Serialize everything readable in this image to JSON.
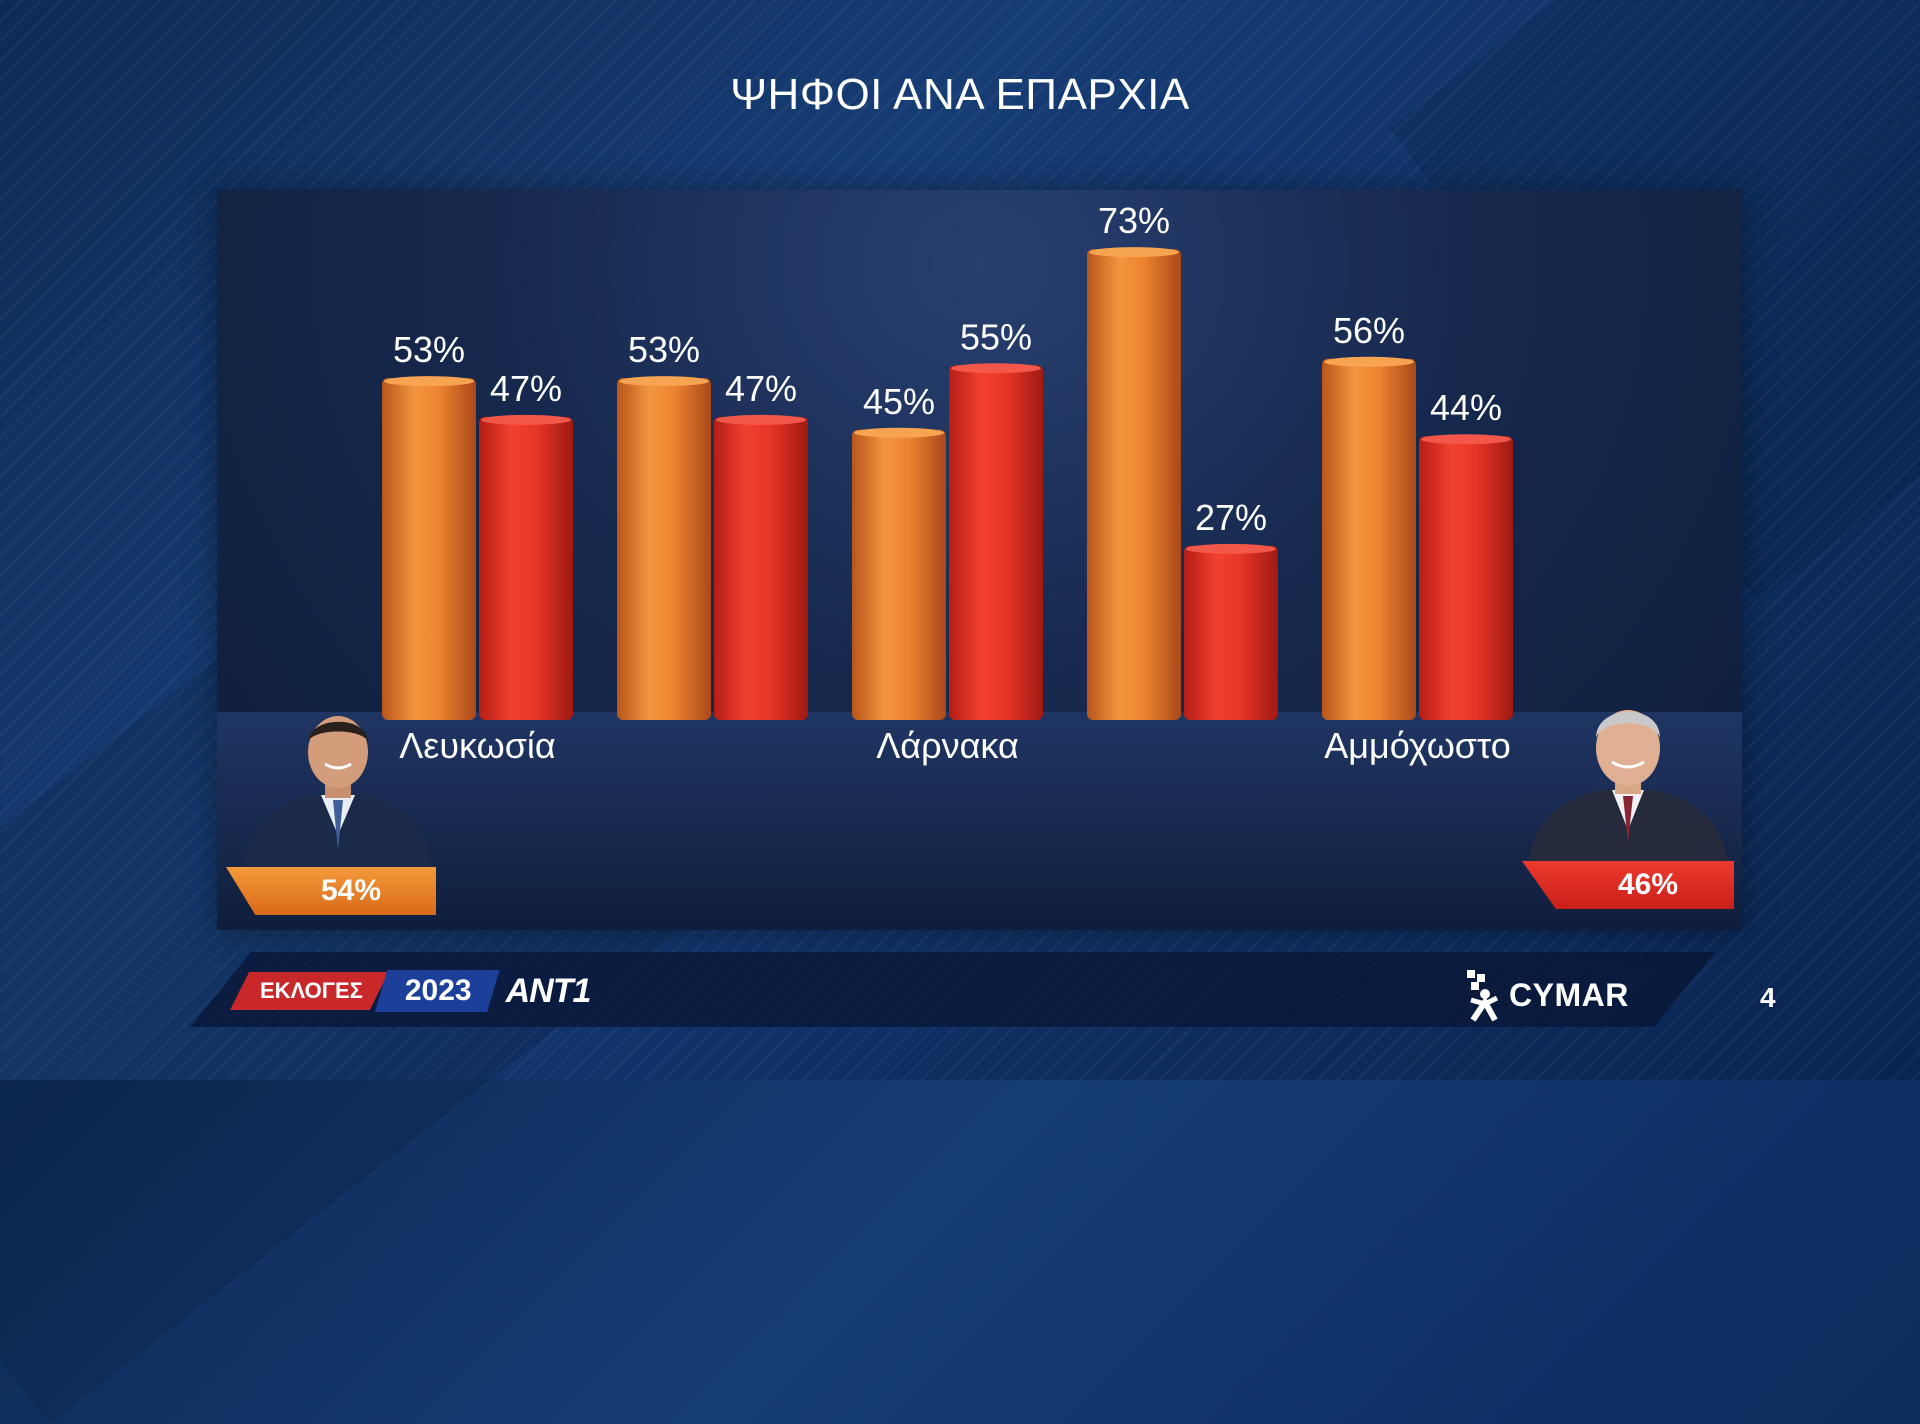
{
  "title": "ΨΗΦΟΙ ΑΝΑ ΕΠΑΡΧΙΑ",
  "chart_data": {
    "type": "bar",
    "categories": [
      "Λευκωσία",
      "",
      "Λάρνακα",
      "",
      "Αμμόχωστο"
    ],
    "series": [
      {
        "values": [
          53,
          53,
          45,
          73,
          56
        ],
        "labels": [
          "53%",
          "53%",
          "45%",
          "73%",
          "56%"
        ]
      },
      {
        "values": [
          47,
          47,
          55,
          27,
          44
        ],
        "labels": [
          "47%",
          "47%",
          "55%",
          "27%",
          "44%"
        ]
      }
    ],
    "colors": {
      "series_1": "#ee8a34",
      "series_2": "#ea3a2b"
    },
    "grid": false,
    "legend": "none"
  },
  "candidates": {
    "left": {
      "percent": "54%",
      "color": "#f08a30"
    },
    "right": {
      "percent": "46%",
      "color": "#e53025"
    }
  },
  "footer": {
    "elections_label": "ΕΚΛΟΓΕΣ",
    "year": "2023",
    "broadcaster": "ANT1",
    "pollster": "CYMAR",
    "page_number": "4"
  }
}
